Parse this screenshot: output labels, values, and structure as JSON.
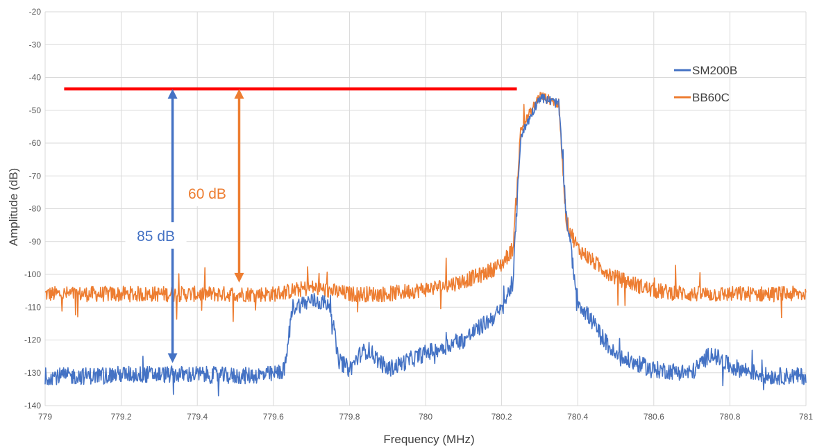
{
  "chart_data": {
    "type": "line",
    "title": "",
    "xlabel": "Frequency (MHz)",
    "ylabel": "Amplitude (dB)",
    "xlim": [
      779,
      781
    ],
    "ylim": [
      -140,
      -20
    ],
    "x_ticks": [
      "779",
      "779.2",
      "779.4",
      "779.6",
      "779.8",
      "780",
      "780.2",
      "780.4",
      "780.6",
      "780.8",
      "781"
    ],
    "y_ticks": [
      "-20",
      "-30",
      "-40",
      "-50",
      "-60",
      "-70",
      "-80",
      "-90",
      "-100",
      "-110",
      "-120",
      "-130",
      "-140"
    ],
    "grid": true,
    "legend_position": "top-right",
    "series": [
      {
        "name": "SM200B",
        "color": "#4472C4",
        "x": [
          779.0,
          779.1,
          779.2,
          779.3,
          779.4,
          779.5,
          779.6,
          779.63,
          779.65,
          779.7,
          779.75,
          779.77,
          779.8,
          779.83,
          779.85,
          779.9,
          780.0,
          780.1,
          780.2,
          780.23,
          780.25,
          780.3,
          780.35,
          780.37,
          780.4,
          780.5,
          780.6,
          780.7,
          780.75,
          780.8,
          780.9,
          781.0
        ],
        "values": [
          -131,
          -131,
          -130.5,
          -130.5,
          -130.5,
          -131,
          -130.5,
          -129,
          -110,
          -108,
          -109,
          -126,
          -129,
          -124,
          -123,
          -129,
          -124,
          -120,
          -111,
          -102,
          -58,
          -46,
          -48,
          -82,
          -108,
          -125,
          -129,
          -130,
          -124,
          -128,
          -131,
          -131
        ]
      },
      {
        "name": "BB60C",
        "color": "#ED7D31",
        "x": [
          779.0,
          779.1,
          779.2,
          779.3,
          779.4,
          779.5,
          779.6,
          779.7,
          779.8,
          779.9,
          780.0,
          780.05,
          780.1,
          780.15,
          780.2,
          780.23,
          780.25,
          780.3,
          780.35,
          780.37,
          780.4,
          780.45,
          780.5,
          780.6,
          780.7,
          780.8,
          780.9,
          781.0
        ],
        "values": [
          -106,
          -106,
          -106,
          -106,
          -106,
          -106,
          -106,
          -104,
          -106,
          -106,
          -104.5,
          -103.5,
          -102,
          -100,
          -97,
          -92,
          -56,
          -45.5,
          -48,
          -84,
          -92,
          -97,
          -101,
          -105,
          -106,
          -106,
          -106,
          -106
        ]
      }
    ],
    "annotations": [
      {
        "type": "reference_line",
        "color": "#FF0000",
        "y": -43.5,
        "x_range": [
          779.05,
          780.24
        ]
      },
      {
        "type": "double_arrow",
        "label": "85 dB",
        "color": "#4472C4",
        "x": 779.335,
        "y_range": [
          -127,
          -43.5
        ]
      },
      {
        "type": "double_arrow",
        "label": "60 dB",
        "color": "#ED7D31",
        "x": 779.51,
        "y_range": [
          -102.5,
          -43.5
        ]
      }
    ]
  }
}
